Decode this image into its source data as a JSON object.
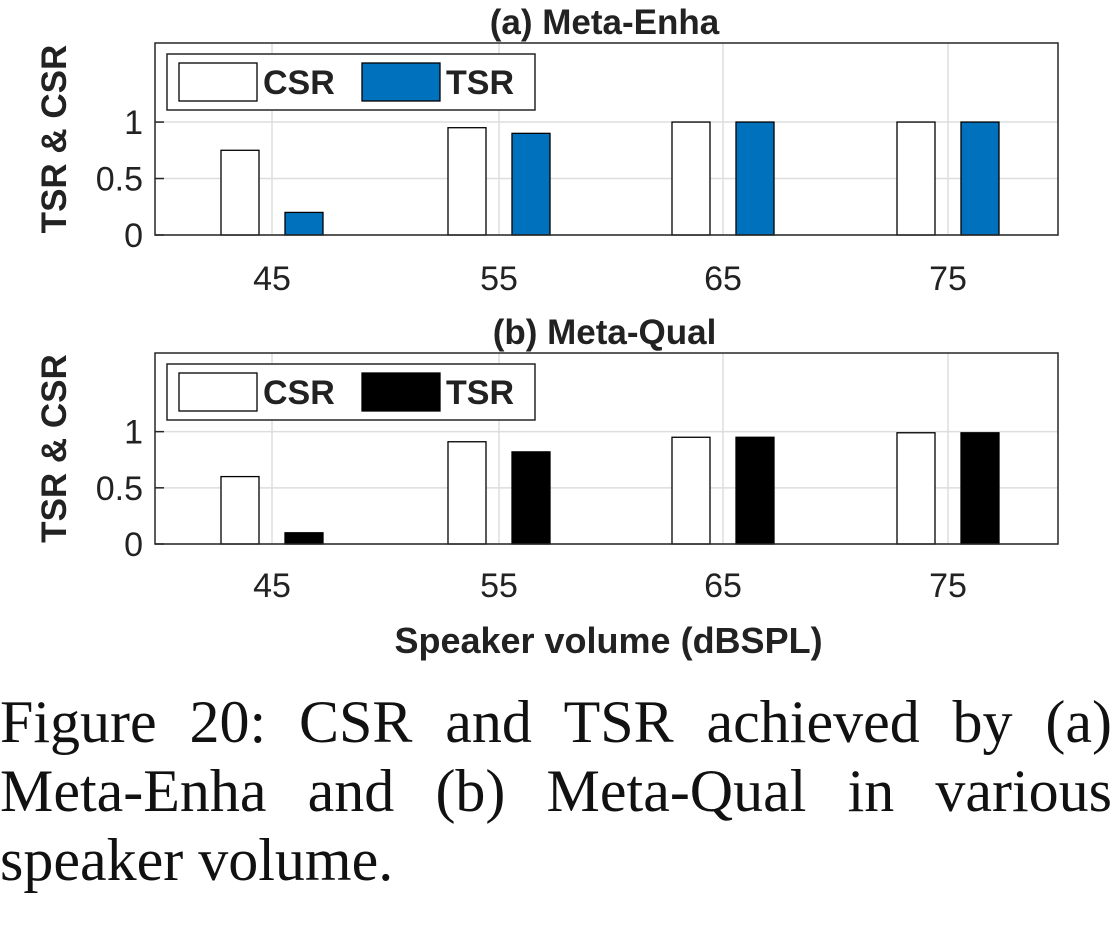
{
  "chart_data": [
    {
      "type": "bar",
      "title": "(a) Meta-Enha",
      "xlabel": "",
      "ylabel": "TSR & CSR",
      "categories": [
        "45",
        "55",
        "65",
        "75"
      ],
      "series": [
        {
          "name": "CSR",
          "values": [
            0.75,
            0.95,
            1.0,
            1.0
          ],
          "color": "#ffffff"
        },
        {
          "name": "TSR",
          "values": [
            0.2,
            0.9,
            1.0,
            1.0
          ],
          "color": "#0072bd"
        }
      ],
      "ylim": [
        0,
        1.7
      ],
      "yticks": [
        "0",
        "0.5",
        "1"
      ],
      "grid": true,
      "legend": "top-left"
    },
    {
      "type": "bar",
      "title": "(b) Meta-Qual",
      "xlabel": "Speaker volume (dBSPL)",
      "ylabel": "TSR & CSR",
      "categories": [
        "45",
        "55",
        "65",
        "75"
      ],
      "series": [
        {
          "name": "CSR",
          "values": [
            0.6,
            0.91,
            0.95,
            0.99
          ],
          "color": "#ffffff"
        },
        {
          "name": "TSR",
          "values": [
            0.1,
            0.82,
            0.95,
            0.99
          ],
          "color": "#000000"
        }
      ],
      "ylim": [
        0,
        1.7
      ],
      "yticks": [
        "0",
        "0.5",
        "1"
      ],
      "grid": true,
      "legend": "top-left"
    }
  ],
  "caption": "Figure 20: CSR and TSR achieved by (a) Meta-Enha and (b) Meta-Qual in various speaker volume."
}
